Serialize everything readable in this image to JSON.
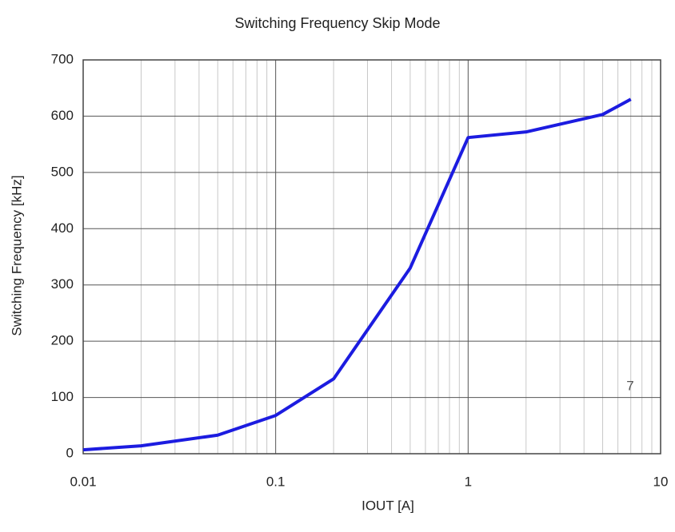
{
  "chart_data": {
    "type": "line",
    "title": "Switching Frequency Skip Mode",
    "xlabel": "IOUT [A]",
    "ylabel": "Switching Frequency [kHz]",
    "x": [
      0.01,
      0.02,
      0.05,
      0.1,
      0.2,
      0.5,
      1,
      2,
      5,
      7
    ],
    "series": [
      {
        "name": "7",
        "color": "#1c1ce0",
        "values": [
          7,
          14,
          33,
          68,
          133,
          330,
          562,
          572,
          603,
          630
        ]
      }
    ],
    "xscale": "log",
    "xlim": [
      0.01,
      10
    ],
    "xticks": [
      0.01,
      0.1,
      1,
      10
    ],
    "ylim": [
      0,
      700
    ],
    "yticks": [
      0,
      100,
      200,
      300,
      400,
      500,
      600,
      700
    ],
    "grid": true
  }
}
